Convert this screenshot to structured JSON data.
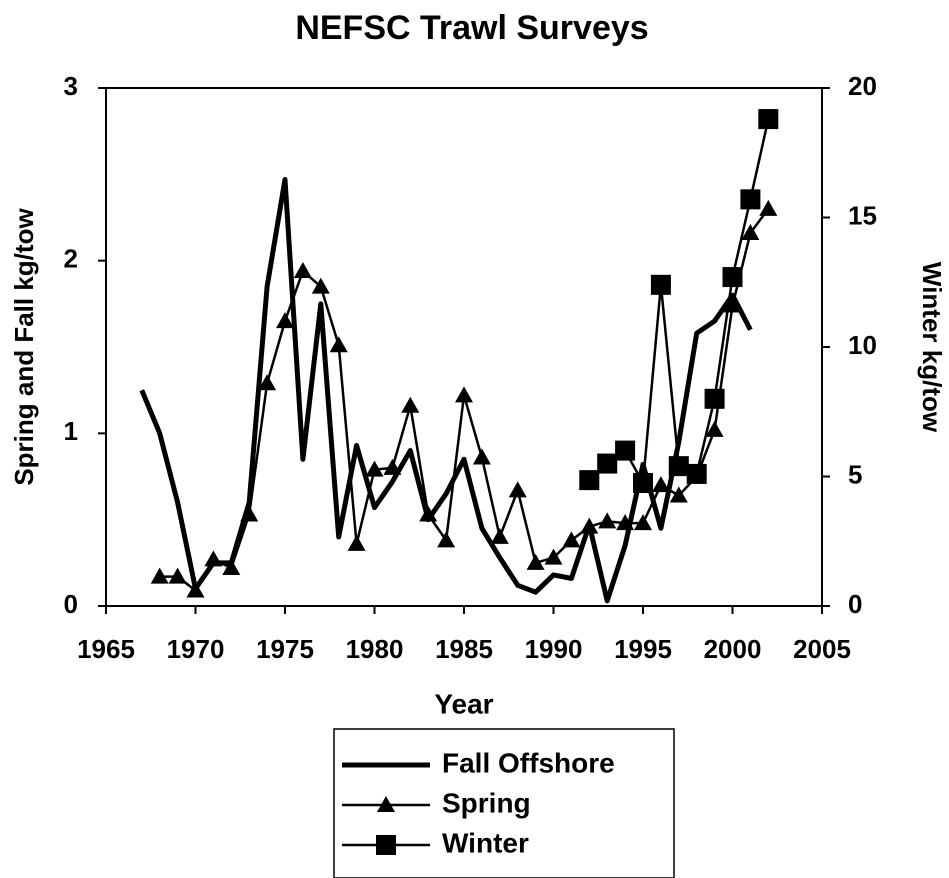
{
  "chart_data": {
    "type": "line",
    "title": "NEFSC Trawl Surveys",
    "x_label": "Year",
    "y_label": "Spring and Fall kg/tow",
    "y2_label": "Winter kg/tow",
    "xlim": [
      1965,
      2005
    ],
    "xticks": [
      1965,
      1970,
      1975,
      1980,
      1985,
      1990,
      1995,
      2000,
      2005
    ],
    "ylim": [
      0,
      3
    ],
    "yticks": [
      0,
      1,
      2,
      3
    ],
    "y2lim": [
      0,
      20
    ],
    "y2ticks": [
      0,
      5,
      10,
      15,
      20
    ],
    "legend": "bottom",
    "series": [
      {
        "name": "Fall Offshore",
        "color": "#000000",
        "marker": "none",
        "x": [
          1967,
          1968,
          1969,
          1970,
          1971,
          1972,
          1973,
          1974,
          1975,
          1976,
          1977,
          1978,
          1979,
          1980,
          1981,
          1982,
          1983,
          1984,
          1985,
          1986,
          1987,
          1988,
          1989,
          1990,
          1991,
          1992,
          1993,
          1994,
          1995,
          1996,
          1997,
          1998,
          1999,
          2000,
          2001
        ],
        "values": [
          1.25,
          1.0,
          0.6,
          0.1,
          0.25,
          0.25,
          0.6,
          1.85,
          2.47,
          0.85,
          1.75,
          0.4,
          0.93,
          0.57,
          0.72,
          0.9,
          0.5,
          0.65,
          0.85,
          0.45,
          0.28,
          0.12,
          0.08,
          0.18,
          0.16,
          0.47,
          0.03,
          0.35,
          0.82,
          0.45,
          0.95,
          1.58,
          1.65,
          1.8,
          1.6
        ]
      },
      {
        "name": "Spring",
        "color": "#000000",
        "marker": "triangle",
        "x": [
          1968,
          1969,
          1970,
          1971,
          1972,
          1973,
          1974,
          1975,
          1976,
          1977,
          1978,
          1979,
          1980,
          1981,
          1982,
          1983,
          1984,
          1985,
          1986,
          1987,
          1988,
          1989,
          1990,
          1991,
          1992,
          1993,
          1994,
          1995,
          1996,
          1997,
          1998,
          1999,
          2000,
          2001,
          2002
        ],
        "values": [
          0.17,
          0.17,
          0.09,
          0.27,
          0.22,
          0.53,
          1.29,
          1.65,
          1.94,
          1.85,
          1.51,
          0.36,
          0.79,
          0.8,
          1.16,
          0.53,
          0.38,
          1.22,
          0.86,
          0.4,
          0.67,
          0.25,
          0.28,
          0.38,
          0.46,
          0.49,
          0.48,
          0.48,
          0.7,
          0.64,
          0.75,
          1.02,
          1.74,
          2.16,
          2.3
        ]
      },
      {
        "name": "Winter",
        "color": "#000000",
        "marker": "square",
        "axis": "y2",
        "x": [
          1992,
          1993,
          1994,
          1995,
          1996,
          1997,
          1998,
          1999,
          2000,
          2001,
          2002
        ],
        "values": [
          4.86,
          5.5,
          6.0,
          4.75,
          12.4,
          5.4,
          5.1,
          8.0,
          12.7,
          15.7,
          18.8
        ]
      }
    ]
  }
}
